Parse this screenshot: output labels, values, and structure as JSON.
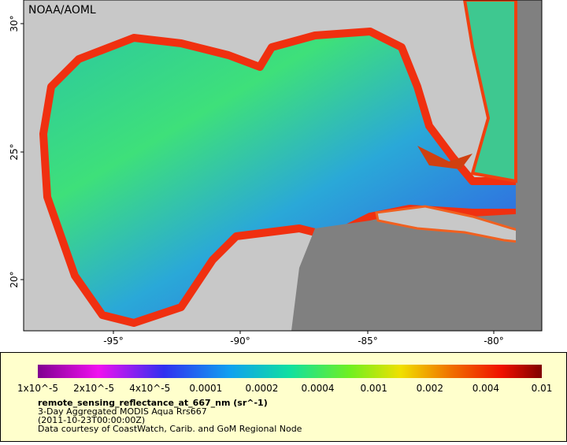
{
  "map": {
    "credit": "NOAA/AOML",
    "lat_ticks": [
      "20°",
      "25°",
      "30°"
    ],
    "lon_ticks": [
      "-95°",
      "-90°",
      "-85°",
      "-80°"
    ]
  },
  "legend": {
    "ticks": [
      "1x10^-5",
      "2x10^-5",
      "4x10^-5",
      "0.0001",
      "0.0002",
      "0.0004",
      "0.001",
      "0.002",
      "0.004",
      "0.01"
    ],
    "title": "remote_sensing_reflectance_at_667_nm (sr^-1)",
    "lines": [
      "3-Day Aggregated MODIS Aqua Rrs667",
      "(2011-10-23T00:00:00Z)",
      "Data courtesy of CoastWatch, Carib. and GoM Regional Node"
    ]
  }
}
